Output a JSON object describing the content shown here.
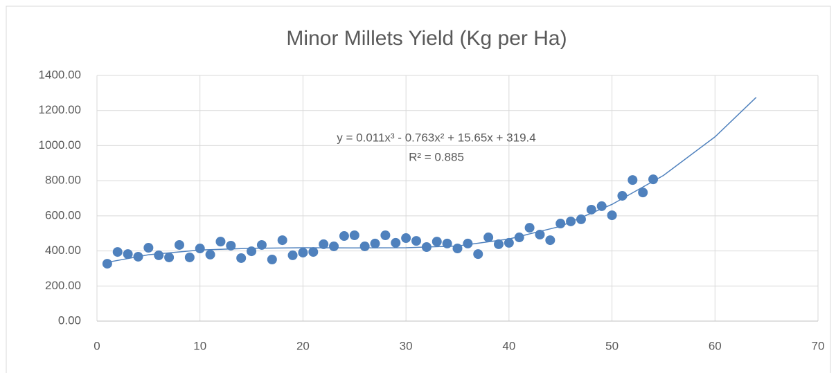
{
  "chart_data": {
    "type": "scatter",
    "title": "Minor Millets Yield (Kg per Ha)",
    "annotations": [
      "y = 0.011x³ - 0.763x² + 15.65x + 319.4",
      "R² = 0.885"
    ],
    "color": "#4f81bd",
    "grid": true,
    "xlim": [
      0,
      70
    ],
    "xticks": [
      0,
      10,
      20,
      30,
      40,
      50,
      60,
      70
    ],
    "ylim": [
      0,
      1400
    ],
    "yticks": [
      {
        "value": 0,
        "label": "0.00"
      },
      {
        "value": 200,
        "label": "200.00"
      },
      {
        "value": 400,
        "label": "400.00"
      },
      {
        "value": 600,
        "label": "600.00"
      },
      {
        "value": 800,
        "label": "800.00"
      },
      {
        "value": 1000,
        "label": "1000.00"
      },
      {
        "value": 1200,
        "label": "1200.00"
      },
      {
        "value": 1400,
        "label": "1400.00"
      }
    ],
    "x": [
      1,
      2,
      3,
      4,
      5,
      6,
      7,
      8,
      9,
      10,
      11,
      12,
      13,
      14,
      15,
      16,
      17,
      18,
      19,
      20,
      21,
      22,
      23,
      24,
      25,
      26,
      27,
      28,
      29,
      30,
      31,
      32,
      33,
      34,
      35,
      36,
      37,
      38,
      39,
      40,
      41,
      42,
      43,
      44,
      45,
      46,
      47,
      48,
      49,
      50,
      51,
      52,
      53,
      54
    ],
    "values": [
      327,
      394,
      382,
      367,
      418,
      375,
      363,
      434,
      363,
      414,
      379,
      453,
      430,
      359,
      398,
      434,
      351,
      461,
      375,
      390,
      394,
      438,
      426,
      485,
      489,
      426,
      442,
      489,
      446,
      473,
      457,
      422,
      453,
      442,
      414,
      442,
      382,
      477,
      438,
      446,
      477,
      532,
      493,
      461,
      556,
      568,
      580,
      635,
      655,
      603,
      714,
      804,
      733,
      808
    ],
    "trendline": {
      "color": "#4f81bd",
      "x": [
        1,
        5,
        10,
        15,
        20,
        25,
        30,
        35,
        40,
        45,
        50,
        55,
        60,
        64
      ],
      "values": [
        335,
        378,
        405,
        415,
        418,
        417,
        418,
        428,
        468,
        540,
        665,
        830,
        1050,
        1275
      ]
    }
  }
}
